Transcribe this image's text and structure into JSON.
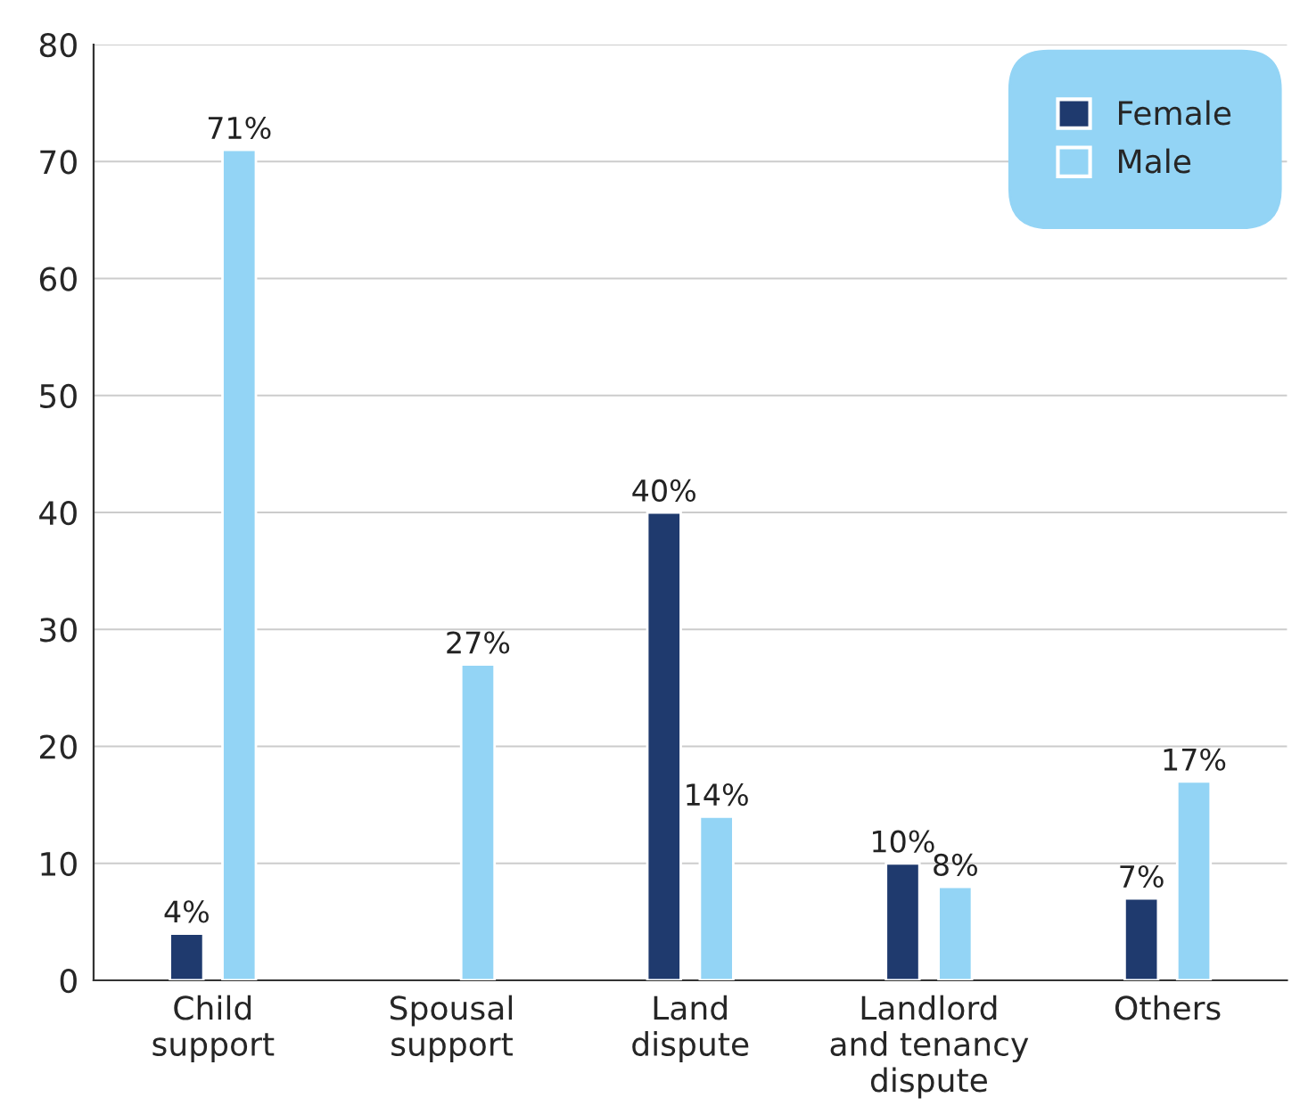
{
  "chart_data": {
    "type": "bar",
    "categories": [
      "Child\nsupport",
      "Spousal\nsupport",
      "Land\ndispute",
      "Landlord\nand tenancy\ndispute",
      "Others"
    ],
    "series": [
      {
        "name": "Female",
        "color": "#1f3a6e",
        "values": [
          4,
          null,
          40,
          10,
          7
        ],
        "value_labels": [
          "4%",
          null,
          "40%",
          "10%",
          "7%"
        ]
      },
      {
        "name": "Male",
        "color": "#93d4f5",
        "values": [
          71,
          27,
          14,
          8,
          17
        ],
        "value_labels": [
          "71%",
          "27%",
          "14%",
          "8%",
          "17%"
        ]
      }
    ],
    "ylim": [
      0,
      80
    ],
    "yticks": [
      0,
      10,
      20,
      30,
      40,
      50,
      60,
      70,
      80
    ],
    "grid": "y",
    "legend": "top right"
  }
}
